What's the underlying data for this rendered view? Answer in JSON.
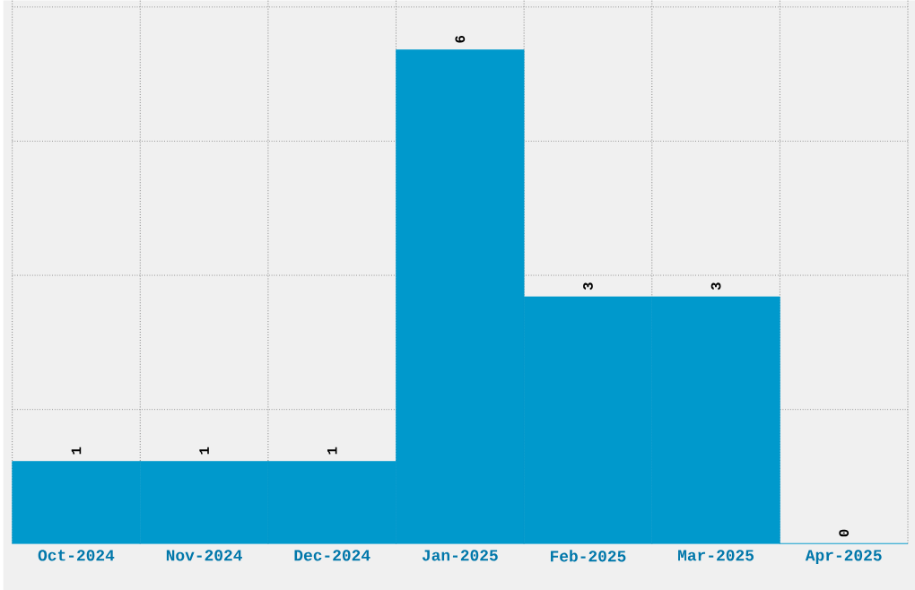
{
  "chart_data": {
    "type": "bar",
    "categories": [
      "Oct-2024",
      "Nov-2024",
      "Dec-2024",
      "Jan-2025",
      "Feb-2025",
      "Mar-2025",
      "Apr-2025"
    ],
    "values": [
      1,
      1,
      1,
      6,
      3,
      3,
      0
    ],
    "color": "#0099cc",
    "data_labels": true,
    "ylim": [
      0,
      6.6
    ],
    "yticks": [
      {
        "value": 1.63,
        "label": null
      },
      {
        "value": 3.26,
        "label": null
      },
      {
        "value": 4.89,
        "label": null
      },
      {
        "value": 6.52,
        "label": null
      }
    ],
    "tick_labels": "x",
    "grid": true
  }
}
